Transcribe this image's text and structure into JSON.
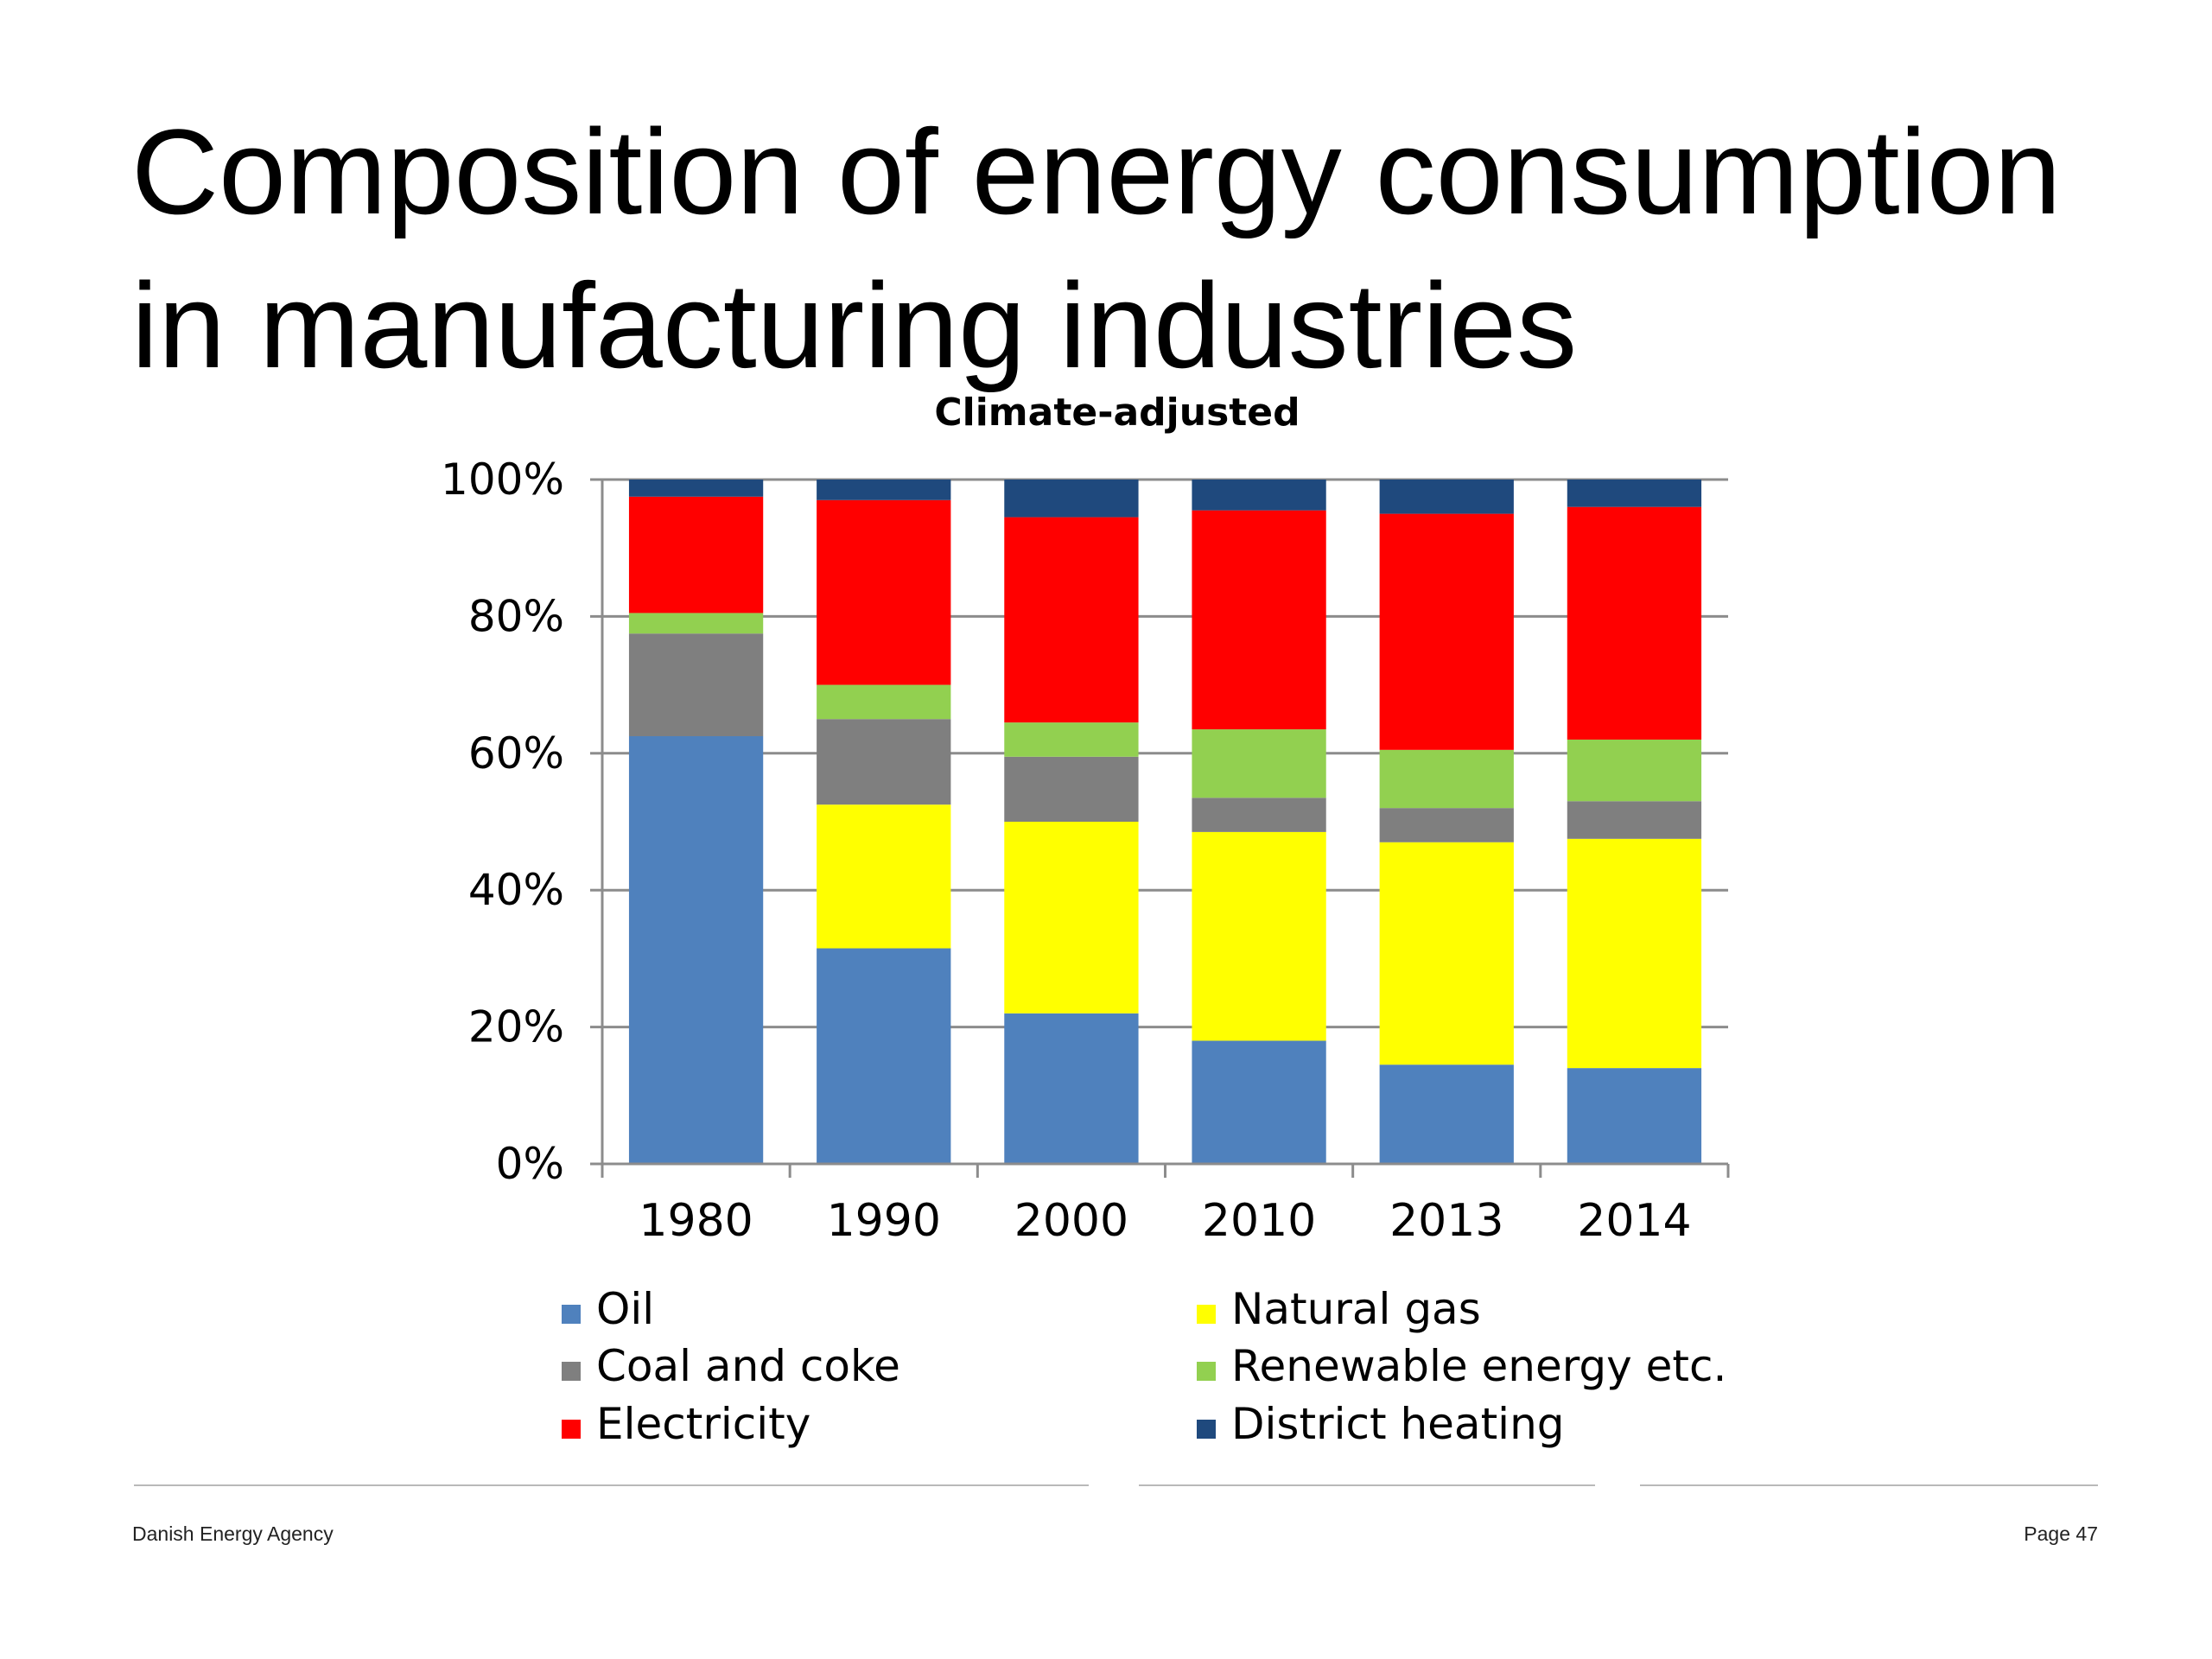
{
  "slide": {
    "title_line1": "Composition of energy consumption",
    "title_line2": "in manufacturing industries"
  },
  "footer": {
    "left": "Danish Energy Agency",
    "right": "Page 47"
  },
  "chart_data": {
    "type": "bar",
    "stacked": true,
    "normalized_percent": true,
    "title": "Climate-adjusted",
    "categories": [
      "1980",
      "1990",
      "2000",
      "2010",
      "2013",
      "2014"
    ],
    "ylim": [
      0,
      100
    ],
    "yticks": [
      "0%",
      "20%",
      "40%",
      "60%",
      "80%",
      "100%"
    ],
    "grid": true,
    "legend_position": "bottom",
    "series": [
      {
        "name": "Oil",
        "color": "#4f81bd",
        "values": [
          62.5,
          31.5,
          22,
          18,
          14.5,
          14
        ]
      },
      {
        "name": "Natural gas",
        "color": "#ffff00",
        "values": [
          0,
          21,
          28,
          30.5,
          32.5,
          33.5
        ]
      },
      {
        "name": "Coal and coke",
        "color": "#7f7f7f",
        "values": [
          15,
          12.5,
          9.5,
          5,
          5,
          5.5
        ]
      },
      {
        "name": "Renewable energy etc.",
        "color": "#92d050",
        "values": [
          3,
          5,
          5,
          10,
          8.5,
          9
        ]
      },
      {
        "name": "Electricity",
        "color": "#ff0000",
        "values": [
          17,
          27,
          30,
          32,
          34.5,
          34
        ]
      },
      {
        "name": "District heating",
        "color": "#1f497d",
        "values": [
          2.5,
          3,
          5.5,
          4.5,
          5,
          4
        ]
      }
    ]
  }
}
